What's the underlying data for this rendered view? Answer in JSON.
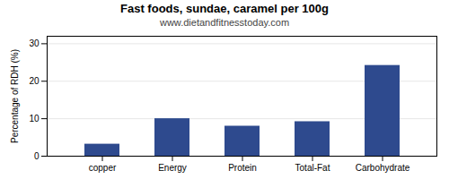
{
  "chart_data": {
    "type": "bar",
    "title": "Fast foods, sundae, caramel per 100g",
    "subtitle": "www.dietandfitnesstoday.com",
    "categories": [
      "copper",
      "Energy",
      "Protein",
      "Total-Fat",
      "Carbohydrate"
    ],
    "values": [
      3.2,
      10.0,
      8.0,
      9.2,
      24.2
    ],
    "color": "#2e4a8e",
    "ylabel": "Percentage of RDH (%)",
    "ylim": [
      0,
      32
    ],
    "yticks": [
      0,
      10,
      20,
      30
    ],
    "grid": true
  }
}
